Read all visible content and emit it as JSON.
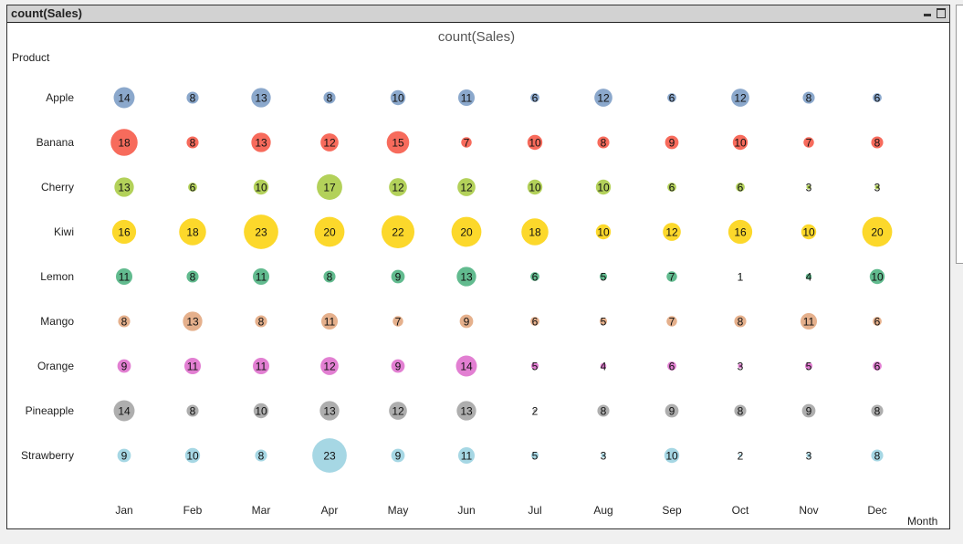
{
  "window": {
    "title": "count(Sales)"
  },
  "chart_data": {
    "type": "scatter",
    "subtype": "grid-bubble",
    "title": "count(Sales)",
    "ylabel": "Product",
    "xlabel": "Month",
    "categories_x": [
      "Jan",
      "Feb",
      "Mar",
      "Apr",
      "May",
      "Jun",
      "Jul",
      "Aug",
      "Sep",
      "Oct",
      "Nov",
      "Dec"
    ],
    "grid": false,
    "series": [
      {
        "name": "Apple",
        "color": "#8ba8cc",
        "values": [
          14,
          8,
          13,
          8,
          10,
          11,
          6,
          12,
          6,
          12,
          8,
          6
        ]
      },
      {
        "name": "Banana",
        "color": "#f76b5c",
        "values": [
          18,
          8,
          13,
          12,
          15,
          7,
          10,
          8,
          9,
          10,
          7,
          8
        ]
      },
      {
        "name": "Cherry",
        "color": "#b3d15a",
        "values": [
          13,
          6,
          10,
          17,
          12,
          12,
          10,
          10,
          6,
          6,
          3,
          3
        ]
      },
      {
        "name": "Kiwi",
        "color": "#fcd82b",
        "values": [
          16,
          18,
          23,
          20,
          22,
          20,
          18,
          10,
          12,
          16,
          10,
          20
        ]
      },
      {
        "name": "Lemon",
        "color": "#62bb8f",
        "values": [
          11,
          8,
          11,
          8,
          9,
          13,
          6,
          5,
          7,
          1,
          4,
          10
        ]
      },
      {
        "name": "Mango",
        "color": "#e5b08c",
        "values": [
          8,
          13,
          8,
          11,
          7,
          9,
          6,
          5,
          7,
          8,
          11,
          6
        ]
      },
      {
        "name": "Orange",
        "color": "#e27fd2",
        "values": [
          9,
          11,
          11,
          12,
          9,
          14,
          5,
          4,
          6,
          3,
          5,
          6
        ]
      },
      {
        "name": "Pineapple",
        "color": "#aeaeae",
        "values": [
          14,
          8,
          10,
          13,
          12,
          13,
          2,
          8,
          9,
          8,
          9,
          8
        ]
      },
      {
        "name": "Strawberry",
        "color": "#a6d7e4",
        "values": [
          9,
          10,
          8,
          23,
          9,
          11,
          5,
          3,
          10,
          2,
          3,
          8
        ]
      }
    ]
  }
}
